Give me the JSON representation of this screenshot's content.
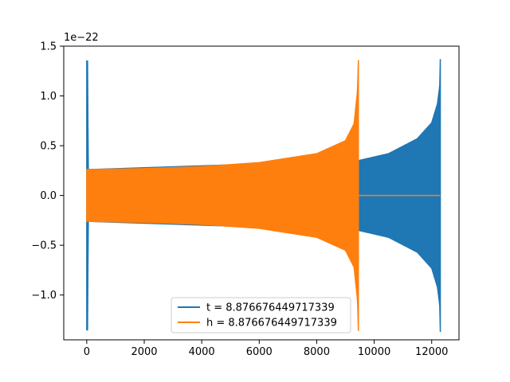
{
  "chart_data": {
    "type": "line",
    "title": "",
    "xlabel": "",
    "ylabel": "",
    "y_offset_label": "1e−22",
    "xlim": [
      -800,
      12950
    ],
    "ylim": [
      -1.45,
      1.5
    ],
    "xticks": [
      0,
      2000,
      4000,
      6000,
      8000,
      10000,
      12000
    ],
    "xtick_labels": [
      "0",
      "2000",
      "4000",
      "6000",
      "8000",
      "10000",
      "12000"
    ],
    "yticks": [
      -1.0,
      -0.5,
      0.0,
      0.5,
      1.0,
      1.5
    ],
    "ytick_labels": [
      "−1.0",
      "−0.5",
      "0.0",
      "0.5",
      "1.0",
      "1.5"
    ],
    "grid": false,
    "legend_position": "lower-center",
    "series": [
      {
        "name": "t = 8.876676449717339",
        "color": "#1f77b4",
        "envelope": [
          {
            "x": 0,
            "amp": 1.35
          },
          {
            "x": 30,
            "amp": 1.35
          },
          {
            "x": 50,
            "amp": 0.26
          },
          {
            "x": 9450,
            "amp": 0.35
          },
          {
            "x": 10500,
            "amp": 0.42
          },
          {
            "x": 11500,
            "amp": 0.57
          },
          {
            "x": 12000,
            "amp": 0.73
          },
          {
            "x": 12200,
            "amp": 0.92
          },
          {
            "x": 12280,
            "amp": 1.1
          },
          {
            "x": 12300,
            "amp": 1.37
          }
        ],
        "end_x": 12300
      },
      {
        "name": "h = 8.876676449717339",
        "color": "#ff7f0e",
        "envelope": [
          {
            "x": 0,
            "amp": 0.26
          },
          {
            "x": 2000,
            "amp": 0.27
          },
          {
            "x": 4000,
            "amp": 0.29
          },
          {
            "x": 6000,
            "amp": 0.33
          },
          {
            "x": 8000,
            "amp": 0.42
          },
          {
            "x": 9000,
            "amp": 0.55
          },
          {
            "x": 9300,
            "amp": 0.72
          },
          {
            "x": 9420,
            "amp": 1.05
          },
          {
            "x": 9450,
            "amp": 1.36
          }
        ],
        "end_x": 9450,
        "tail_value": 0.0,
        "tail_end_x": 12300
      }
    ]
  }
}
